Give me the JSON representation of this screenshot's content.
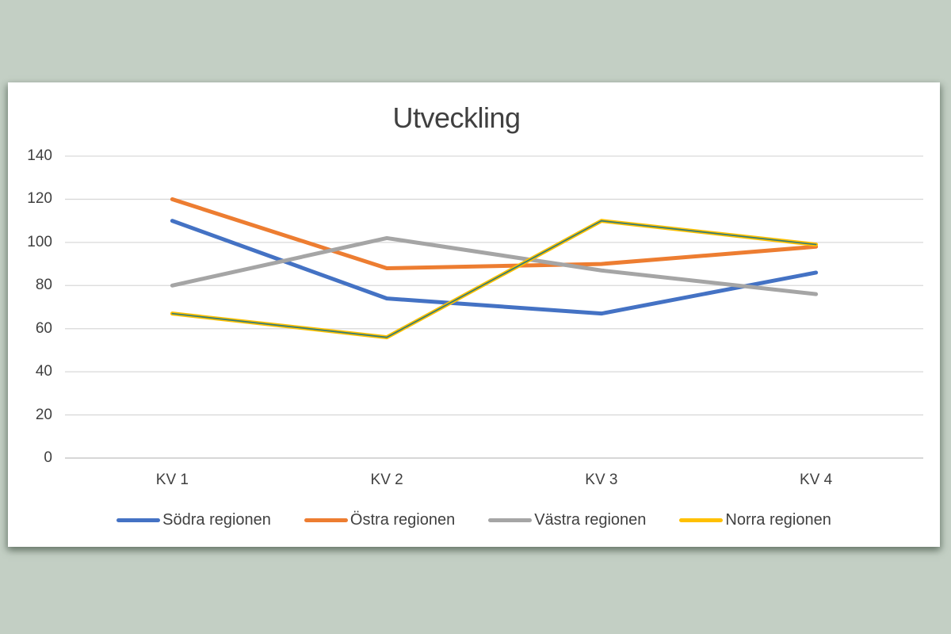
{
  "window": {
    "background_color": "#c3cfc4",
    "card_background_color": "#ffffff"
  },
  "chart_data": {
    "type": "line",
    "title": "Utveckling",
    "categories": [
      "KV 1",
      "KV 2",
      "KV 3",
      "KV 4"
    ],
    "series": [
      {
        "name": "Södra regionen",
        "color": "#4472C4",
        "values": [
          110,
          74,
          67,
          86
        ]
      },
      {
        "name": "Östra regionen",
        "color": "#ED7D31",
        "values": [
          120,
          88,
          90,
          98
        ]
      },
      {
        "name": "Västra regionen",
        "color": "#A5A5A5",
        "values": [
          80,
          102,
          87,
          76
        ]
      },
      {
        "name": "Norra regionen",
        "color": "#FFC000",
        "core_color": "#2F7B7B",
        "values": [
          67,
          56,
          110,
          99
        ]
      }
    ],
    "ylim": [
      0,
      140
    ],
    "yticks": [
      0,
      20,
      40,
      60,
      80,
      100,
      120,
      140
    ],
    "grid": true,
    "gridline_color": "#D9D9D9",
    "axis_line_color": "#BFBFBF",
    "text_color": "#404040",
    "legend_position": "bottom",
    "xlabel": "",
    "ylabel": ""
  }
}
